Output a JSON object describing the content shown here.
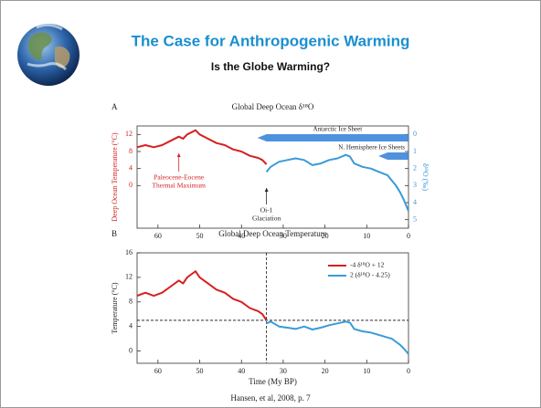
{
  "slide": {
    "title": "The Case for Anthropogenic Warming",
    "subtitle": "Is the Globe Warming?",
    "citation": "Hansen, et al, 2008, p. 7"
  },
  "chart_data": [
    {
      "type": "line",
      "panel": "A",
      "title": "Global Deep Ocean δ¹⁸O",
      "y_label": "Deep Ocean Temperature (°C)",
      "y2_label": "δ¹⁸O (‰)",
      "xlim": [
        65,
        0
      ],
      "xticks": [
        60,
        50,
        40,
        30,
        20,
        10,
        0
      ],
      "ylim": [
        -10,
        14
      ],
      "yticks": [
        0,
        4,
        8,
        12
      ],
      "y2lim": [
        5.5,
        -0.5
      ],
      "y2ticks": [
        0,
        1,
        2,
        3,
        4,
        5
      ],
      "series": [
        {
          "color": "#d62020",
          "x": [
            65,
            63,
            61,
            59,
            57,
            55,
            54,
            53,
            52,
            51,
            50,
            48,
            46,
            44,
            42,
            40,
            38,
            36,
            35,
            34
          ],
          "values": [
            9,
            9.5,
            9,
            9.5,
            10.5,
            11.5,
            11,
            12,
            12.5,
            13,
            12,
            11,
            10,
            9.5,
            8.5,
            8,
            7,
            6.5,
            6,
            5
          ]
        },
        {
          "color": "#3a9ad9",
          "axis": "y2",
          "x": [
            34,
            33,
            31,
            29,
            27,
            25,
            23,
            21,
            19,
            17,
            15,
            14,
            13,
            11,
            9,
            7,
            5,
            4,
            3,
            2,
            1,
            0
          ],
          "values": [
            2.2,
            1.9,
            1.6,
            1.5,
            1.4,
            1.5,
            1.8,
            1.7,
            1.5,
            1.4,
            1.2,
            1.3,
            1.7,
            1.9,
            2.0,
            2.2,
            2.4,
            2.7,
            3.0,
            3.4,
            3.9,
            4.5
          ]
        }
      ],
      "bands": [
        {
          "label": "Antarctic Ice Sheet",
          "start": 34,
          "end": 0,
          "color": "#2f7fd8"
        },
        {
          "label": "N. Hemisphere Ice Sheets",
          "start": 5,
          "end": 0,
          "color": "#2f7fd8"
        }
      ],
      "annotations": [
        {
          "text": [
            "Paleocene-Eocene",
            "Thermal Maximum"
          ],
          "x": 55,
          "color": "#d62020"
        },
        {
          "text": [
            "Oi-1",
            "Glaciation"
          ],
          "x": 34,
          "color": "#222222"
        }
      ]
    },
    {
      "type": "line",
      "panel": "B",
      "title": "Global Deep Ocean Temperature",
      "x_label": "Time (My BP)",
      "y_label": "Temperature (°C)",
      "xlim": [
        65,
        0
      ],
      "xticks": [
        60,
        50,
        40,
        30,
        20,
        10,
        0
      ],
      "ylim": [
        -2,
        16
      ],
      "yticks": [
        0,
        4,
        8,
        12,
        16
      ],
      "legend": "upper right",
      "reference_lines": [
        {
          "axis": "x",
          "value": 34
        },
        {
          "axis": "y",
          "value": 5
        }
      ],
      "series": [
        {
          "name": "-4 δ¹⁸O + 12",
          "color": "#d62020",
          "x": [
            65,
            63,
            61,
            59,
            57,
            55,
            54,
            53,
            52,
            51,
            50,
            48,
            46,
            44,
            42,
            40,
            38,
            36,
            35,
            34
          ],
          "values": [
            9,
            9.5,
            9,
            9.5,
            10.5,
            11.5,
            11,
            12,
            12.5,
            13,
            12,
            11,
            10,
            9.5,
            8.5,
            8,
            7,
            6.5,
            6,
            5
          ]
        },
        {
          "name": "2 (δ¹⁸O - 4.25)",
          "color": "#3a9ad9",
          "x": [
            34,
            33,
            31,
            29,
            27,
            25,
            23,
            21,
            19,
            17,
            15,
            14,
            13,
            11,
            9,
            7,
            5,
            4,
            3,
            2,
            1,
            0
          ],
          "values": [
            4.5,
            4.8,
            4,
            3.8,
            3.6,
            4,
            3.5,
            3.8,
            4.2,
            4.5,
            4.8,
            4.6,
            3.6,
            3.2,
            3,
            2.6,
            2.2,
            2,
            1.5,
            1,
            0.3,
            -0.5
          ]
        }
      ]
    }
  ]
}
